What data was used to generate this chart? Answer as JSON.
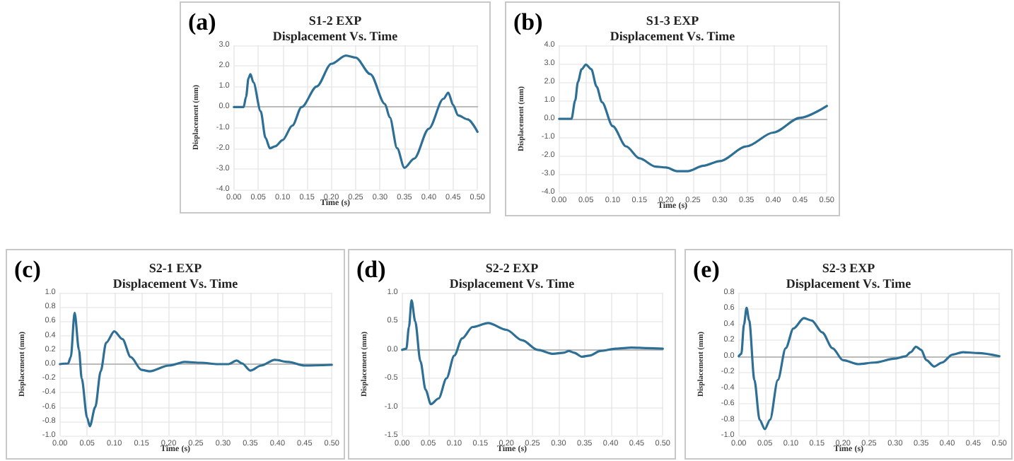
{
  "chart_data": [
    {
      "type": "line",
      "title": "S1-2 EXP",
      "subtitle": "Displacement Vs. Time",
      "xlabel": "Time (s)",
      "ylabel": "Displacement (mm)",
      "annotations": [
        "(a)"
      ],
      "color": "#2e6f95",
      "grid": true,
      "x": [
        0,
        0.02,
        0.025,
        0.03,
        0.034,
        0.04,
        0.055,
        0.065,
        0.074,
        0.085,
        0.1,
        0.12,
        0.139,
        0.17,
        0.2,
        0.23,
        0.25,
        0.28,
        0.31,
        0.32,
        0.335,
        0.35,
        0.37,
        0.4,
        0.43,
        0.44,
        0.45,
        0.46,
        0.48,
        0.5
      ],
      "values": [
        0,
        0,
        0.5,
        1.4,
        1.6,
        1.2,
        -0.2,
        -1.5,
        -2.0,
        -1.9,
        -1.6,
        -0.9,
        0,
        1.0,
        2.1,
        2.5,
        2.4,
        1.6,
        0.15,
        -0.5,
        -2.0,
        -2.95,
        -2.5,
        -1.05,
        0.4,
        0.7,
        0.1,
        -0.4,
        -0.6,
        -1.2
      ],
      "xlim": [
        0,
        0.5
      ],
      "xticks": [
        {
          "value": 0,
          "label": "0.00"
        },
        {
          "value": 0.05,
          "label": "0.05"
        },
        {
          "value": 0.1,
          "label": "0.10"
        },
        {
          "value": 0.15,
          "label": "0.15"
        },
        {
          "value": 0.2,
          "label": "0.20"
        },
        {
          "value": 0.25,
          "label": "0.25"
        },
        {
          "value": 0.3,
          "label": "0.30"
        },
        {
          "value": 0.35,
          "label": "0.35"
        },
        {
          "value": 0.4,
          "label": "0.40"
        },
        {
          "value": 0.45,
          "label": "0.45"
        },
        {
          "value": 0.5,
          "label": "0.50"
        }
      ],
      "ylim": [
        -4,
        3
      ],
      "yticks": [
        {
          "value": -4,
          "label": "-4.0"
        },
        {
          "value": -3,
          "label": "-3.0"
        },
        {
          "value": -2,
          "label": "-2.0"
        },
        {
          "value": -1,
          "label": "-1.0"
        },
        {
          "value": 0,
          "label": "0.0"
        },
        {
          "value": 1,
          "label": "1.0"
        },
        {
          "value": 2,
          "label": "2.0"
        },
        {
          "value": 3,
          "label": "3.0"
        }
      ]
    },
    {
      "type": "line",
      "title": "S1-3 EXP",
      "subtitle": "Displacement Vs. Time",
      "xlabel": "Time (s)",
      "ylabel": "Displacement (mm)",
      "annotations": [
        "(b)"
      ],
      "color": "#2e6f95",
      "grid": true,
      "x": [
        0,
        0.023,
        0.03,
        0.035,
        0.042,
        0.05,
        0.06,
        0.07,
        0.08,
        0.1,
        0.125,
        0.15,
        0.18,
        0.2,
        0.22,
        0.24,
        0.27,
        0.3,
        0.35,
        0.4,
        0.45,
        0.5
      ],
      "values": [
        0,
        0,
        1.0,
        2.0,
        2.7,
        2.95,
        2.7,
        1.75,
        0.9,
        -0.4,
        -1.5,
        -2.15,
        -2.6,
        -2.65,
        -2.85,
        -2.85,
        -2.55,
        -2.3,
        -1.5,
        -0.75,
        0.05,
        0.7
      ],
      "xlim": [
        0,
        0.5
      ],
      "xticks": [
        {
          "value": 0,
          "label": "0.00"
        },
        {
          "value": 0.05,
          "label": "0.05"
        },
        {
          "value": 0.1,
          "label": "0.10"
        },
        {
          "value": 0.15,
          "label": "0.15"
        },
        {
          "value": 0.2,
          "label": "0.20"
        },
        {
          "value": 0.25,
          "label": "0.25"
        },
        {
          "value": 0.3,
          "label": "0.30"
        },
        {
          "value": 0.35,
          "label": "0.35"
        },
        {
          "value": 0.4,
          "label": "0.40"
        },
        {
          "value": 0.45,
          "label": "0.45"
        },
        {
          "value": 0.5,
          "label": "0.50"
        }
      ],
      "ylim": [
        -4,
        4
      ],
      "yticks": [
        {
          "value": -4,
          "label": "-4.0"
        },
        {
          "value": -3,
          "label": "-3.0"
        },
        {
          "value": -2,
          "label": "-2.0"
        },
        {
          "value": -1,
          "label": "-1.0"
        },
        {
          "value": 0,
          "label": "0.0"
        },
        {
          "value": 1,
          "label": "1.0"
        },
        {
          "value": 2,
          "label": "2.0"
        },
        {
          "value": 3,
          "label": "3.0"
        },
        {
          "value": 4,
          "label": "4.0"
        }
      ]
    },
    {
      "type": "line",
      "title": "S2-1 EXP",
      "subtitle": "Displacement Vs. Time",
      "xlabel": "Time (s)",
      "ylabel": "Displacement (mm)",
      "annotations": [
        "(c)"
      ],
      "color": "#2e6f95",
      "grid": true,
      "x": [
        0,
        0.015,
        0.02,
        0.027,
        0.035,
        0.04,
        0.05,
        0.055,
        0.065,
        0.075,
        0.085,
        0.1,
        0.115,
        0.13,
        0.15,
        0.165,
        0.2,
        0.23,
        0.26,
        0.29,
        0.31,
        0.325,
        0.335,
        0.35,
        0.37,
        0.395,
        0.42,
        0.45,
        0.5
      ],
      "values": [
        0,
        0.01,
        0.1,
        0.72,
        0.2,
        -0.2,
        -0.75,
        -0.87,
        -0.6,
        -0.1,
        0.3,
        0.46,
        0.35,
        0.1,
        -0.08,
        -0.1,
        -0.02,
        0.03,
        0.02,
        0,
        0,
        0.05,
        0.01,
        -0.09,
        -0.02,
        0.06,
        0.03,
        -0.02,
        -0.01
      ],
      "xlim": [
        0,
        0.5
      ],
      "xticks": [
        {
          "value": 0,
          "label": "0.00"
        },
        {
          "value": 0.05,
          "label": "0.05"
        },
        {
          "value": 0.1,
          "label": "0.10"
        },
        {
          "value": 0.15,
          "label": "0.15"
        },
        {
          "value": 0.2,
          "label": "0.20"
        },
        {
          "value": 0.25,
          "label": "0.25"
        },
        {
          "value": 0.3,
          "label": "0.30"
        },
        {
          "value": 0.35,
          "label": "0.35"
        },
        {
          "value": 0.4,
          "label": "0.40"
        },
        {
          "value": 0.45,
          "label": "0.45"
        },
        {
          "value": 0.5,
          "label": "0.50"
        }
      ],
      "ylim": [
        -1,
        1
      ],
      "yticks": [
        {
          "value": -1,
          "label": "-1.0"
        },
        {
          "value": -0.8,
          "label": "-0.8"
        },
        {
          "value": -0.6,
          "label": "-0.6"
        },
        {
          "value": -0.4,
          "label": "-0.4"
        },
        {
          "value": -0.2,
          "label": "-0.2"
        },
        {
          "value": 0,
          "label": "0.0"
        },
        {
          "value": 0.2,
          "label": "0.2"
        },
        {
          "value": 0.4,
          "label": "0.4"
        },
        {
          "value": 0.6,
          "label": "0.6"
        },
        {
          "value": 0.8,
          "label": "0.8"
        },
        {
          "value": 1,
          "label": "1.0"
        }
      ]
    },
    {
      "type": "line",
      "title": "S2-2 EXP",
      "subtitle": "Displacement Vs. Time",
      "xlabel": "Time (s)",
      "ylabel": "Displacement (mm)",
      "annotations": [
        "(d)"
      ],
      "color": "#2e6f95",
      "grid": true,
      "x": [
        0,
        0.008,
        0.013,
        0.018,
        0.025,
        0.035,
        0.045,
        0.055,
        0.07,
        0.085,
        0.1,
        0.115,
        0.135,
        0.165,
        0.2,
        0.23,
        0.26,
        0.29,
        0.31,
        0.32,
        0.33,
        0.345,
        0.36,
        0.38,
        0.41,
        0.44,
        0.47,
        0.5
      ],
      "values": [
        0,
        0.02,
        0.4,
        0.87,
        0.5,
        -0.2,
        -0.7,
        -0.95,
        -0.85,
        -0.5,
        -0.1,
        0.2,
        0.4,
        0.47,
        0.35,
        0.17,
        0,
        -0.07,
        -0.05,
        -0.02,
        -0.05,
        -0.12,
        -0.1,
        -0.02,
        0.02,
        0.04,
        0.03,
        0.02
      ],
      "xlim": [
        0,
        0.5
      ],
      "xticks": [
        {
          "value": 0,
          "label": "0.00"
        },
        {
          "value": 0.05,
          "label": "0.05"
        },
        {
          "value": 0.1,
          "label": "0.10"
        },
        {
          "value": 0.15,
          "label": "0.15"
        },
        {
          "value": 0.2,
          "label": "0.20"
        },
        {
          "value": 0.25,
          "label": "0.25"
        },
        {
          "value": 0.3,
          "label": "0.30"
        },
        {
          "value": 0.35,
          "label": "0.35"
        },
        {
          "value": 0.4,
          "label": "0.40"
        },
        {
          "value": 0.45,
          "label": "0.45"
        },
        {
          "value": 0.5,
          "label": "0.50"
        }
      ],
      "ylim": [
        -1.5,
        1
      ],
      "yticks": [
        {
          "value": -1.5,
          "label": "-1.5"
        },
        {
          "value": -1,
          "label": "-1.0"
        },
        {
          "value": -0.5,
          "label": "-0.5"
        },
        {
          "value": 0,
          "label": "0.0"
        },
        {
          "value": 0.5,
          "label": "0.5"
        },
        {
          "value": 1,
          "label": "1.0"
        }
      ]
    },
    {
      "type": "line",
      "title": "S2-3 EXP",
      "subtitle": "Displacement Vs. Time",
      "xlabel": "Time (s)",
      "ylabel": "Displacement (mm)",
      "annotations": [
        "(e)"
      ],
      "color": "#2e6f95",
      "grid": true,
      "x": [
        0,
        0.005,
        0.01,
        0.015,
        0.02,
        0.03,
        0.04,
        0.05,
        0.06,
        0.075,
        0.09,
        0.105,
        0.125,
        0.14,
        0.16,
        0.18,
        0.2,
        0.23,
        0.26,
        0.3,
        0.32,
        0.33,
        0.34,
        0.35,
        0.36,
        0.375,
        0.39,
        0.41,
        0.43,
        0.46,
        0.5
      ],
      "values": [
        0,
        0.03,
        0.4,
        0.61,
        0.45,
        -0.3,
        -0.8,
        -0.92,
        -0.8,
        -0.3,
        0.1,
        0.35,
        0.48,
        0.45,
        0.3,
        0.1,
        -0.05,
        -0.1,
        -0.08,
        -0.03,
        0,
        0.05,
        0.12,
        0.08,
        -0.05,
        -0.13,
        -0.08,
        0.02,
        0.05,
        0.04,
        0
      ],
      "xlim": [
        0,
        0.5
      ],
      "xticks": [
        {
          "value": 0,
          "label": "0.00"
        },
        {
          "value": 0.05,
          "label": "0.05"
        },
        {
          "value": 0.1,
          "label": "0.10"
        },
        {
          "value": 0.15,
          "label": "0.15"
        },
        {
          "value": 0.2,
          "label": "0.20"
        },
        {
          "value": 0.25,
          "label": "0.25"
        },
        {
          "value": 0.3,
          "label": "0.30"
        },
        {
          "value": 0.35,
          "label": "0.35"
        },
        {
          "value": 0.4,
          "label": "0.40"
        },
        {
          "value": 0.45,
          "label": "0.45"
        },
        {
          "value": 0.5,
          "label": "0.50"
        }
      ],
      "ylim": [
        -1,
        0.8
      ],
      "yticks": [
        {
          "value": -1,
          "label": "-1.0"
        },
        {
          "value": -0.8,
          "label": "-0.8"
        },
        {
          "value": -0.6,
          "label": "-0.6"
        },
        {
          "value": -0.4,
          "label": "-0.4"
        },
        {
          "value": -0.2,
          "label": "-0.2"
        },
        {
          "value": 0,
          "label": "0.0"
        },
        {
          "value": 0.2,
          "label": "0.2"
        },
        {
          "value": 0.4,
          "label": "0.4"
        },
        {
          "value": 0.6,
          "label": "0.6"
        },
        {
          "value": 0.8,
          "label": "0.8"
        }
      ]
    }
  ]
}
